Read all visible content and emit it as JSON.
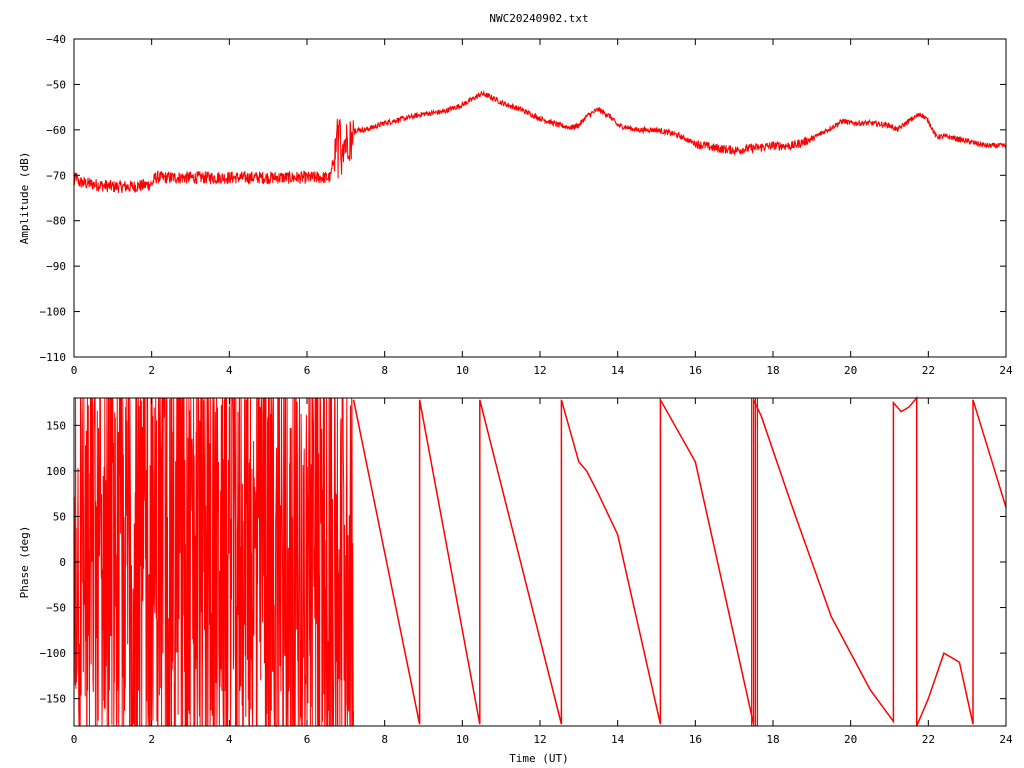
{
  "colors": {
    "line": "#ff0000",
    "axis": "#000000",
    "background": "#ffffff"
  },
  "chart_data": [
    {
      "type": "line",
      "title": "NWC20240902.txt",
      "xlabel": "",
      "ylabel": "Amplitude (dB)",
      "xlim": [
        0,
        24
      ],
      "ylim": [
        -110,
        -40
      ],
      "xticks": [
        0,
        2,
        4,
        6,
        8,
        10,
        12,
        14,
        16,
        18,
        20,
        22,
        24
      ],
      "yticks": [
        -110,
        -100,
        -90,
        -80,
        -70,
        -60,
        -50,
        -40
      ],
      "ytick_labels": [
        "−110",
        "−100",
        "−90",
        "−80",
        "−70",
        "−60",
        "−50",
        "−40"
      ],
      "grid": false,
      "series": [
        {
          "x": [
            0,
            0.05,
            0.1,
            0.5,
            1.0,
            1.5,
            2.0,
            2.1,
            2.5,
            3.0,
            4.0,
            5.0,
            6.0,
            6.6,
            6.7,
            6.8,
            6.9,
            7.0,
            7.1,
            7.2,
            7.5,
            8.0,
            8.5,
            9.0,
            9.5,
            10.0,
            10.3,
            10.5,
            10.8,
            11.0,
            11.5,
            12.0,
            12.5,
            12.8,
            13.0,
            13.2,
            13.5,
            13.8,
            14.0,
            14.5,
            15.0,
            15.5,
            16.0,
            16.5,
            17.0,
            17.5,
            18.0,
            18.5,
            19.0,
            19.5,
            19.8,
            20.0,
            20.5,
            21.0,
            21.2,
            21.5,
            21.8,
            22.0,
            22.2,
            22.5,
            23.0,
            23.5,
            24.0
          ],
          "y": [
            -72,
            -70,
            -71.5,
            -72,
            -72.5,
            -72.5,
            -72,
            -70.5,
            -70.5,
            -70.5,
            -70.5,
            -70.5,
            -70.5,
            -70.5,
            -66,
            -61,
            -62,
            -63,
            -61,
            -60,
            -60,
            -58.5,
            -57.5,
            -56.5,
            -56,
            -54.5,
            -53,
            -52,
            -53,
            -54,
            -55.5,
            -57.5,
            -59,
            -59.5,
            -59,
            -57,
            -55.5,
            -57,
            -59,
            -60,
            -60,
            -61,
            -63,
            -64,
            -64.5,
            -64,
            -63.5,
            -63.5,
            -62,
            -59.5,
            -58,
            -58.5,
            -58.5,
            -59,
            -60,
            -58,
            -56.5,
            -58,
            -61.5,
            -61.5,
            -62.5,
            -63.5,
            -63.5
          ],
          "noise": 1.2
        }
      ]
    },
    {
      "type": "line",
      "title": "",
      "xlabel": "Time (UT)",
      "ylabel": "Phase (deg)",
      "xlim": [
        0,
        24
      ],
      "ylim": [
        -180,
        180
      ],
      "xticks": [
        0,
        2,
        4,
        6,
        8,
        10,
        12,
        14,
        16,
        18,
        20,
        22,
        24
      ],
      "yticks": [
        -150,
        -100,
        -50,
        0,
        50,
        100,
        150
      ],
      "ytick_labels": [
        "−150",
        "−100",
        "−50",
        "0",
        "50",
        "100",
        "150"
      ],
      "grid": false,
      "noisy_region": [
        0,
        7.2
      ],
      "series": [
        {
          "x": [
            7.2,
            8.9,
            8.9,
            10.45,
            10.45,
            12.55,
            12.55,
            13.0,
            13.2,
            13.5,
            14.0,
            15.1,
            15.1,
            16.0,
            17.5,
            17.5,
            17.7,
            18.5,
            19.5,
            20.0,
            20.5,
            21.1,
            21.1,
            21.3,
            21.5,
            21.7,
            21.7,
            22.0,
            22.4,
            22.8,
            23.15,
            23.15,
            24.0
          ],
          "y": [
            178,
            -178,
            178,
            -178,
            178,
            -178,
            178,
            110,
            100,
            75,
            30,
            -178,
            178,
            110,
            -178,
            178,
            160,
            60,
            -60,
            -100,
            -140,
            -175,
            175,
            165,
            170,
            180,
            -180,
            -150,
            -100,
            -110,
            -178,
            178,
            60
          ]
        }
      ]
    }
  ]
}
